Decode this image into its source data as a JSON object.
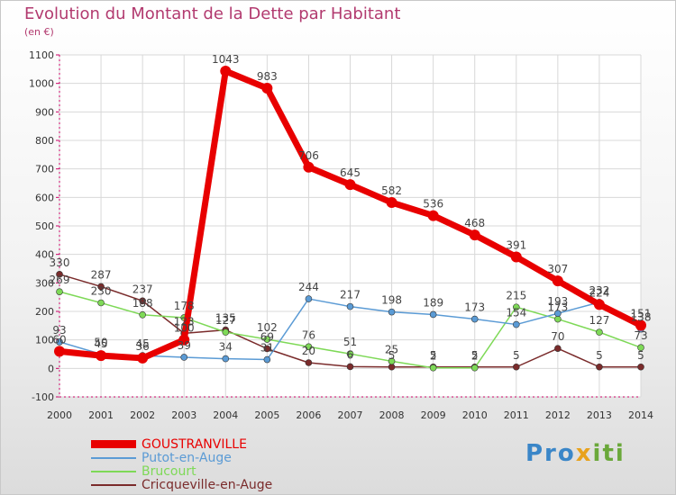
{
  "title": "Evolution du Montant de la Dette par Habitant",
  "unit": "(en €)",
  "logo": {
    "a": "Pro",
    "b": "x",
    "c": "iti"
  },
  "chart_data": {
    "type": "line",
    "title": "Evolution du Montant de la Dette par Habitant",
    "ylabel": "(en €)",
    "ylim": [
      -100,
      1100
    ],
    "yticks": [
      "-100",
      "0",
      "100",
      "200",
      "300",
      "400",
      "500",
      "600",
      "700",
      "800",
      "900",
      "1000",
      "1100"
    ],
    "x": [
      "2000",
      "2001",
      "2002",
      "2003",
      "2004",
      "2005",
      "2006",
      "2007",
      "2008",
      "2009",
      "2010",
      "2011",
      "2012",
      "2013",
      "2014"
    ],
    "grid": true,
    "legend_position": "bottom-left",
    "series": [
      {
        "name": "GOUSTRANVILLE",
        "color": "#e80000",
        "values": [
          60,
          45,
          36,
          100,
          1043,
          983,
          706,
          645,
          582,
          536,
          468,
          391,
          307,
          224,
          151
        ],
        "labels": [
          "60",
          "45",
          "36",
          "100",
          "1043",
          "983",
          "706",
          "645",
          "582",
          "536",
          "468",
          "391",
          "307",
          "224",
          "151"
        ]
      },
      {
        "name": "Putot-en-Auge",
        "color": "#5b9bd5",
        "values": [
          93,
          50,
          45,
          39,
          34,
          31,
          244,
          217,
          198,
          189,
          173,
          154,
          193,
          232,
          138
        ],
        "labels": [
          "93",
          "50",
          "45",
          "39",
          "34",
          "31",
          "244",
          "217",
          "198",
          "189",
          "173",
          "154",
          "193",
          "232",
          "138"
        ]
      },
      {
        "name": "Brucourt",
        "color": "#7ed957",
        "values": [
          269,
          230,
          188,
          178,
          127,
          102,
          76,
          51,
          25,
          2,
          2,
          215,
          173,
          127,
          73
        ],
        "labels": [
          "269",
          "230",
          "188",
          "178",
          "127",
          "102",
          "76",
          "51",
          "25",
          "2",
          "2",
          "215",
          "173",
          "127",
          "73"
        ]
      },
      {
        "name": "Cricqueville-en-Auge",
        "color": "#7a2b2b",
        "values": [
          330,
          287,
          237,
          123,
          135,
          69,
          20,
          6,
          5,
          5,
          5,
          5,
          70,
          5,
          5
        ],
        "labels": [
          "330",
          "287",
          "237",
          "123",
          "135",
          "69",
          "20",
          "6",
          "5",
          "5",
          "5",
          "5",
          "70",
          "5",
          "5"
        ]
      }
    ]
  }
}
